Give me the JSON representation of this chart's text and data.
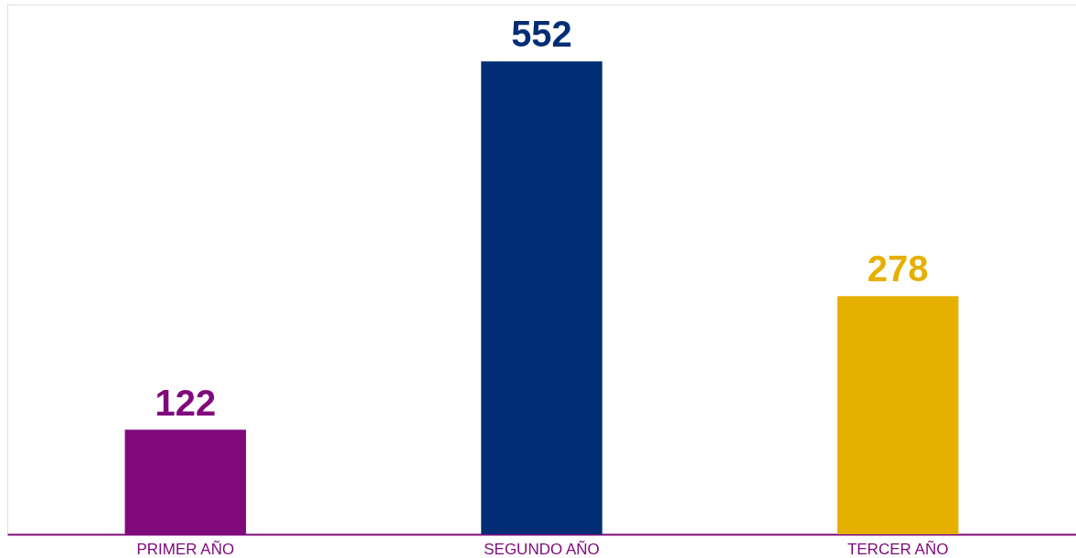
{
  "chart_data": {
    "type": "bar",
    "categories": [
      "PRIMER AÑO",
      "SEGUNDO AÑO",
      "TERCER AÑO"
    ],
    "values": [
      122,
      552,
      278
    ],
    "colors": [
      "#800a7c",
      "#002d74",
      "#e6b000"
    ],
    "data_labels": true
  }
}
